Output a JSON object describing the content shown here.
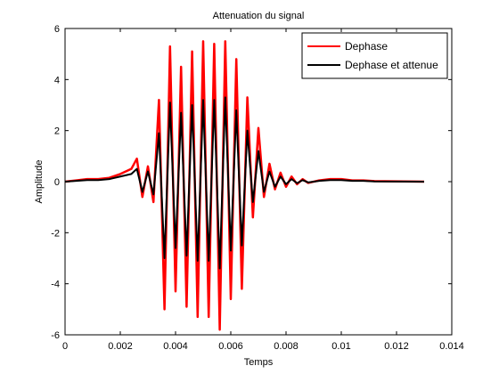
{
  "chart_data": {
    "type": "line",
    "title": "Attenuation du signal",
    "xlabel": "Temps",
    "ylabel": "Amplitude",
    "xlim": [
      0,
      0.014
    ],
    "ylim": [
      -6,
      6
    ],
    "xticks": [
      0,
      0.002,
      0.004,
      0.006,
      0.008,
      0.01,
      0.012,
      0.014
    ],
    "xtick_labels": [
      "0",
      "0.002",
      "0.004",
      "0.006",
      "0.008",
      "0.01",
      "0.012",
      "0.014"
    ],
    "yticks": [
      -6,
      -4,
      -2,
      0,
      2,
      4,
      6
    ],
    "ytick_labels": [
      "-6",
      "-4",
      "-2",
      "0",
      "2",
      "4",
      "6"
    ],
    "grid": false,
    "legend_position": "top-right",
    "series": [
      {
        "name": "Dephase",
        "color": "#ff0000",
        "x": [
          0,
          0.0004,
          0.0008,
          0.0012,
          0.0016,
          0.002,
          0.0024,
          0.0026,
          0.0028,
          0.003,
          0.0032,
          0.0034,
          0.0036,
          0.0038,
          0.004,
          0.0042,
          0.0044,
          0.0046,
          0.0048,
          0.005,
          0.0052,
          0.0054,
          0.0056,
          0.0058,
          0.006,
          0.0062,
          0.0064,
          0.0066,
          0.0068,
          0.007,
          0.0072,
          0.0074,
          0.0076,
          0.0078,
          0.008,
          0.0082,
          0.0084,
          0.0086,
          0.0088,
          0.0092,
          0.0096,
          0.01,
          0.0104,
          0.0108,
          0.0112,
          0.013
        ],
        "y": [
          0,
          0.05,
          0.1,
          0.1,
          0.15,
          0.3,
          0.5,
          0.9,
          -0.6,
          0.6,
          -0.8,
          3.2,
          -5.0,
          5.3,
          -4.3,
          4.5,
          -4.9,
          5.1,
          -5.3,
          5.5,
          -5.3,
          5.4,
          -5.8,
          5.5,
          -4.6,
          4.8,
          -4.2,
          3.3,
          -1.4,
          2.1,
          -0.6,
          0.7,
          -0.3,
          0.35,
          -0.2,
          0.2,
          -0.1,
          0.1,
          -0.05,
          0.05,
          0.1,
          0.1,
          0.05,
          0.05,
          0.02,
          0
        ]
      },
      {
        "name": "Dephase et attenue",
        "color": "#000000",
        "x": [
          0,
          0.0004,
          0.0008,
          0.0012,
          0.0016,
          0.002,
          0.0024,
          0.0026,
          0.0028,
          0.003,
          0.0032,
          0.0034,
          0.0036,
          0.0038,
          0.004,
          0.0042,
          0.0044,
          0.0046,
          0.0048,
          0.005,
          0.0052,
          0.0054,
          0.0056,
          0.0058,
          0.006,
          0.0062,
          0.0064,
          0.0066,
          0.0068,
          0.007,
          0.0072,
          0.0074,
          0.0076,
          0.0078,
          0.008,
          0.0082,
          0.0084,
          0.0086,
          0.0088,
          0.0092,
          0.0096,
          0.01,
          0.0104,
          0.0108,
          0.0112,
          0.013
        ],
        "y": [
          0,
          0.03,
          0.06,
          0.06,
          0.1,
          0.2,
          0.3,
          0.5,
          -0.4,
          0.4,
          -0.5,
          1.9,
          -3.0,
          3.1,
          -2.6,
          2.7,
          -2.9,
          3.0,
          -3.1,
          3.2,
          -3.1,
          3.2,
          -3.4,
          3.3,
          -2.7,
          2.8,
          -2.5,
          2.0,
          -0.8,
          1.2,
          -0.4,
          0.4,
          -0.2,
          0.2,
          -0.1,
          0.1,
          -0.06,
          0.06,
          -0.03,
          0.03,
          0.06,
          0.06,
          0.03,
          0.03,
          0.01,
          0
        ]
      }
    ]
  }
}
